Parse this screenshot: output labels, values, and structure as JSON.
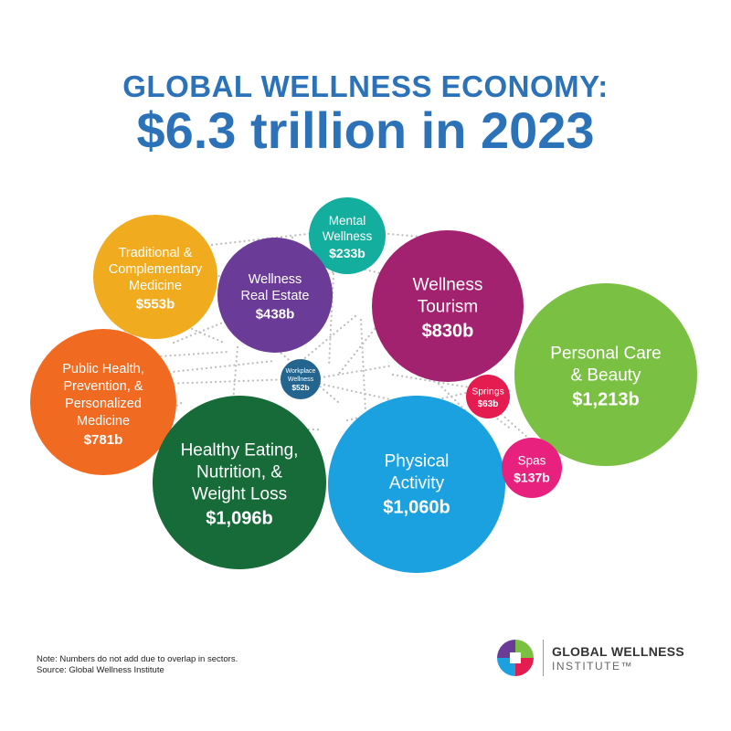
{
  "header": {
    "line1": "GLOBAL WELLNESS ECONOMY:",
    "line2": "$6.3 trillion in 2023"
  },
  "chart_data": {
    "type": "bubble",
    "unit": "US$ billions",
    "bubbles": [
      {
        "label": [
          "Traditional &",
          "Complementary",
          "Medicine"
        ],
        "value_label": "$553b",
        "value": 553,
        "color": "#f0ab1f",
        "text_color": "#ffffff"
      },
      {
        "label": [
          "Mental",
          "Wellness"
        ],
        "value_label": "$233b",
        "value": 233,
        "color": "#13ae9d",
        "text_color": "#ffffff"
      },
      {
        "label": [
          "Wellness",
          "Real Estate"
        ],
        "value_label": "$438b",
        "value": 438,
        "color": "#6a3b97",
        "text_color": "#ffffff"
      },
      {
        "label": [
          "Wellness",
          "Tourism"
        ],
        "value_label": "$830b",
        "value": 830,
        "color": "#a2226f",
        "text_color": "#ffffff"
      },
      {
        "label": [
          "Personal Care",
          "& Beauty"
        ],
        "value_label": "$1,213b",
        "value": 1213,
        "color": "#7ac042",
        "text_color": "#ffffff"
      },
      {
        "label": [
          "Public Health,",
          "Prevention, &",
          "Personalized",
          "Medicine"
        ],
        "value_label": "$781b",
        "value": 781,
        "color": "#f16a22",
        "text_color": "#ffffff"
      },
      {
        "label": [
          "Workplace",
          "Wellness"
        ],
        "value_label": "$52b",
        "value": 52,
        "color": "#23658e",
        "text_color": "#ffffff"
      },
      {
        "label": [
          "Springs"
        ],
        "value_label": "$63b",
        "value": 63,
        "color": "#e41c4f",
        "text_color": "#ffffff"
      },
      {
        "label": [
          "Healthy Eating,",
          "Nutrition, &",
          "Weight Loss"
        ],
        "value_label": "$1,096b",
        "value": 1096,
        "color": "#166b39",
        "text_color": "#ffffff"
      },
      {
        "label": [
          "Physical",
          "Activity"
        ],
        "value_label": "$1,060b",
        "value": 1060,
        "color": "#1ba1df",
        "text_color": "#ffffff"
      },
      {
        "label": [
          "Spas"
        ],
        "value_label": "$137b",
        "value": 137,
        "color": "#e8217f",
        "text_color": "#ffffff"
      }
    ]
  },
  "footer": {
    "note": "Note: Numbers do not add due to overlap in sectors.",
    "source": "Source: Global Wellness Institute",
    "logo_name": "GLOBAL WELLNESS",
    "logo_sub": "INSTITUTE™",
    "logo_colors": [
      "#6a3b97",
      "#7ac042",
      "#1ba1df",
      "#e41c4f"
    ]
  }
}
